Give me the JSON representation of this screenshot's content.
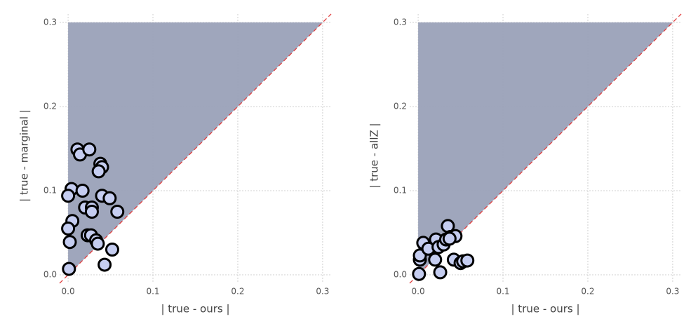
{
  "chart_data": [
    {
      "type": "scatter",
      "xlabel": "| true - ours |",
      "ylabel": "| true - marginal |",
      "xlim": [
        -0.01,
        0.31
      ],
      "ylim": [
        -0.01,
        0.31
      ],
      "xticks": [
        {
          "value": 0,
          "label": "0.0"
        },
        0.1,
        0.2,
        0.3
      ],
      "yticks": [
        {
          "value": 0,
          "label": "0.0"
        },
        0.1,
        0.2,
        0.3
      ],
      "grid": true,
      "color": "#c5cdf0",
      "x": [
        0.001,
        0.011,
        0.014,
        0.025,
        0.038,
        0.04,
        0.036,
        0.004,
        0.0,
        0.017,
        0.04,
        0.049,
        0.058,
        0.02,
        0.028,
        0.028,
        0.005,
        0.0,
        0.002,
        0.023,
        0.027,
        0.033,
        0.035,
        0.052,
        0.043
      ],
      "y": [
        0.007,
        0.149,
        0.143,
        0.149,
        0.132,
        0.128,
        0.123,
        0.102,
        0.094,
        0.1,
        0.094,
        0.091,
        0.075,
        0.08,
        0.08,
        0.075,
        0.064,
        0.055,
        0.039,
        0.047,
        0.047,
        0.041,
        0.037,
        0.03,
        0.012
      ]
    },
    {
      "type": "scatter",
      "xlabel": "| true - ours |",
      "ylabel": "| true - allZ |",
      "xlim": [
        -0.01,
        0.31
      ],
      "ylim": [
        -0.01,
        0.31
      ],
      "xticks": [
        {
          "value": 0,
          "label": "0.0"
        },
        0.1,
        0.2,
        0.3
      ],
      "yticks": [
        {
          "value": 0,
          "label": "0.0"
        },
        0.1,
        0.2,
        0.3
      ],
      "grid": true,
      "color": "#c5cdf0",
      "x": [
        0.001,
        0.002,
        0.002,
        0.006,
        0.012,
        0.02,
        0.021,
        0.024,
        0.026,
        0.03,
        0.033,
        0.035,
        0.038,
        0.044,
        0.042,
        0.05,
        0.053,
        0.058,
        0.037
      ],
      "y": [
        0.001,
        0.018,
        0.023,
        0.038,
        0.031,
        0.018,
        0.042,
        0.033,
        0.003,
        0.036,
        0.042,
        0.058,
        0.045,
        0.046,
        0.018,
        0.014,
        0.016,
        0.017,
        0.043
      ]
    }
  ]
}
